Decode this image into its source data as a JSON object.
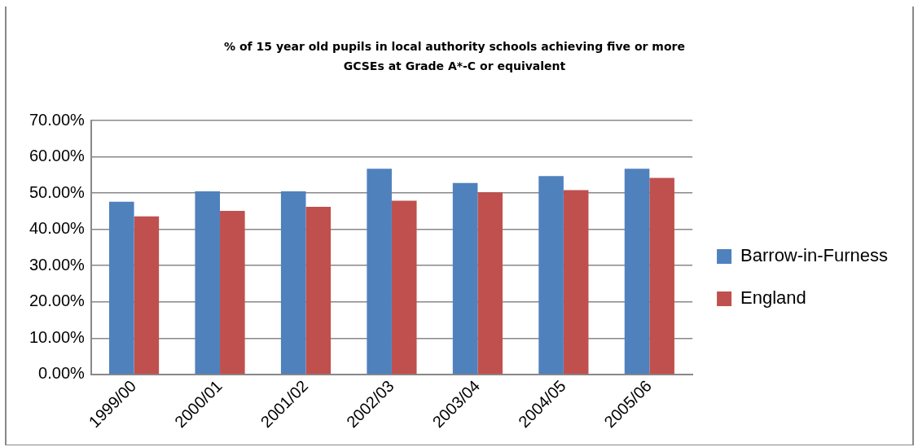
{
  "chart_data": {
    "type": "bar",
    "title": "% of 15 year old pupils in local authority schools achieving five or more GCSEs at Grade A*-C or equivalent",
    "categories": [
      "1999/00",
      "2000/01",
      "2001/02",
      "2002/03",
      "2003/04",
      "2004/05",
      "2005/06"
    ],
    "series": [
      {
        "name": "Barrow-in-Furness",
        "color": "#4f81bd",
        "values": [
          47.6,
          50.5,
          50.5,
          56.7,
          52.8,
          54.7,
          56.7
        ]
      },
      {
        "name": "England",
        "color": "#c0504d",
        "values": [
          43.6,
          45.1,
          46.2,
          47.9,
          50.2,
          50.8,
          54.2
        ]
      }
    ],
    "ylim": [
      0,
      70
    ],
    "yticks": [
      {
        "value": 0,
        "label": "0.00%"
      },
      {
        "value": 10,
        "label": "10.00%"
      },
      {
        "value": 20,
        "label": "20.00%"
      },
      {
        "value": 30,
        "label": "30.00%"
      },
      {
        "value": 40,
        "label": "40.00%"
      },
      {
        "value": 50,
        "label": "50.00%"
      },
      {
        "value": 60,
        "label": "60.00%"
      },
      {
        "value": 70,
        "label": "70.00%"
      }
    ],
    "grid": "y",
    "legend": "right"
  }
}
